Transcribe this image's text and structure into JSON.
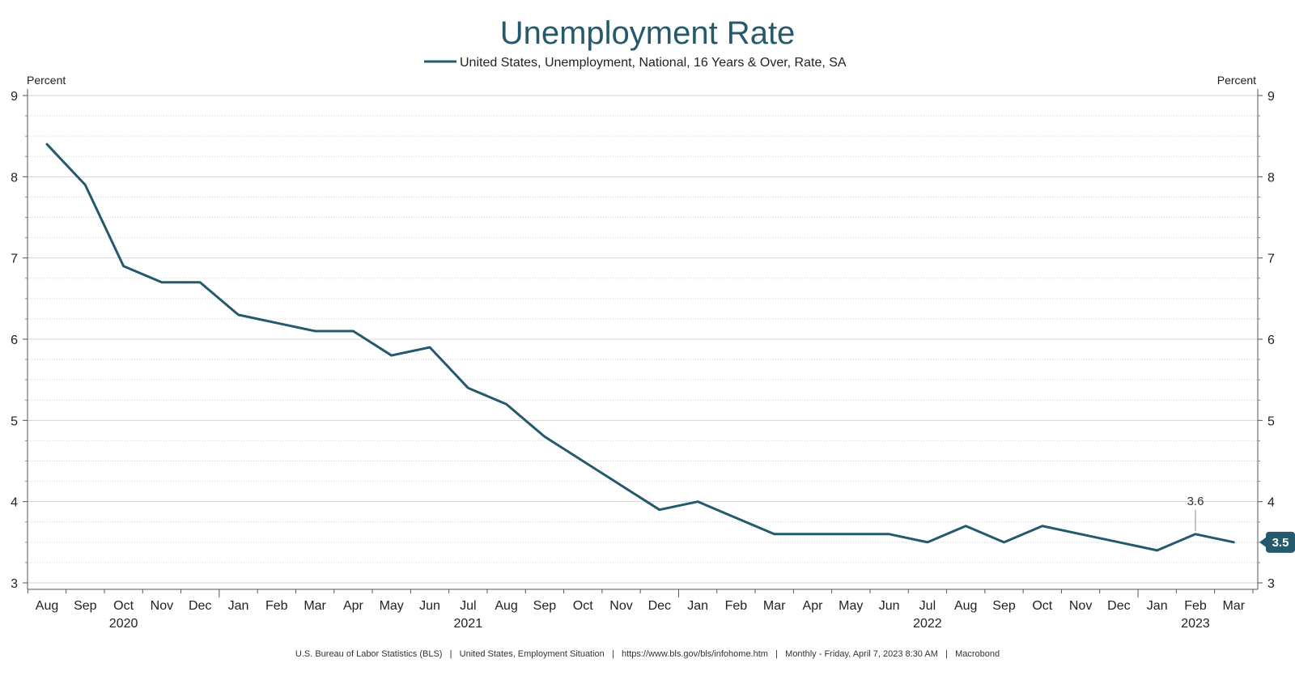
{
  "chart_data": {
    "type": "line",
    "title": "Unemployment Rate",
    "legend": "United States, Unemployment, National, 16 Years & Over, Rate, SA",
    "ylabel_left": "Percent",
    "ylabel_right": "Percent",
    "ylim": [
      3,
      9
    ],
    "yticks": [
      3,
      4,
      5,
      6,
      7,
      8,
      9
    ],
    "categories": [
      "Aug",
      "Sep",
      "Oct",
      "Nov",
      "Dec",
      "Jan",
      "Feb",
      "Mar",
      "Apr",
      "May",
      "Jun",
      "Jul",
      "Aug",
      "Sep",
      "Oct",
      "Nov",
      "Dec",
      "Jan",
      "Feb",
      "Mar",
      "Apr",
      "May",
      "Jun",
      "Jul",
      "Aug",
      "Sep",
      "Oct",
      "Nov",
      "Dec",
      "Jan",
      "Feb",
      "Mar"
    ],
    "year_labels": [
      {
        "label": "2020",
        "index": 2
      },
      {
        "label": "2021",
        "index": 11
      },
      {
        "label": "2022",
        "index": 23
      },
      {
        "label": "2023",
        "index": 30
      }
    ],
    "series": [
      {
        "name": "United States, Unemployment, National, 16 Years & Over, Rate, SA",
        "color": "#245a6b",
        "values": [
          8.4,
          7.9,
          6.9,
          6.7,
          6.7,
          6.3,
          6.2,
          6.1,
          6.1,
          5.8,
          5.9,
          5.4,
          5.2,
          4.8,
          4.5,
          4.2,
          3.9,
          4.0,
          3.8,
          3.6,
          3.6,
          3.6,
          3.6,
          3.5,
          3.7,
          3.5,
          3.7,
          3.6,
          3.5,
          3.4,
          3.6,
          3.5
        ]
      }
    ],
    "annotation": {
      "text": "3.6",
      "index": 30
    },
    "last_value_badge": "3.5",
    "footer": "U.S. Bureau of Labor Statistics (BLS)   |   United States, Employment Situation   |   https://www.bls.gov/bls/infohome.htm   |   Monthly - Friday, April 7, 2023 8:30 AM   |   Macrobond"
  }
}
